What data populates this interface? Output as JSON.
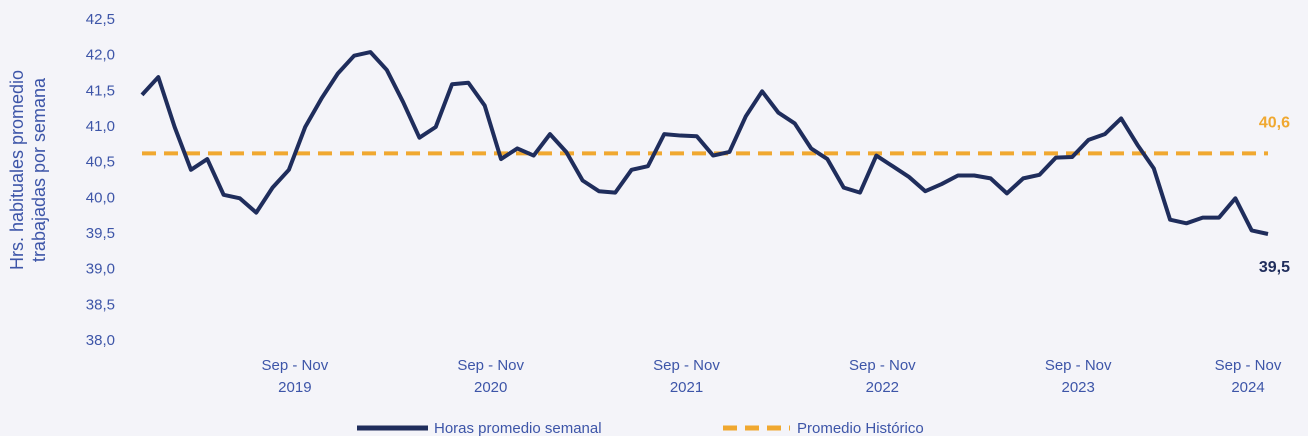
{
  "chart_data": {
    "type": "line",
    "ylabel": [
      "Hrs. habituales promedio",
      "trabajadas por semana"
    ],
    "categories": [
      null,
      null,
      null,
      null,
      null,
      null,
      null,
      null,
      null,
      "Sep - Nov\n2019",
      null,
      null,
      null,
      null,
      null,
      null,
      null,
      null,
      null,
      null,
      null,
      "Sep - Nov\n2020",
      null,
      null,
      null,
      null,
      null,
      null,
      null,
      null,
      null,
      null,
      null,
      "Sep - Nov\n2021",
      null,
      null,
      null,
      null,
      null,
      null,
      null,
      null,
      null,
      null,
      null,
      "Sep - Nov\n2022",
      null,
      null,
      null,
      null,
      null,
      null,
      null,
      null,
      null,
      null,
      null,
      "Sep - Nov\n2023",
      null,
      null,
      null,
      null,
      null,
      null,
      null,
      null,
      null,
      null,
      null,
      "Sep - Nov\n2024"
    ],
    "series": [
      {
        "name": "Horas promedio semanal",
        "color": "#1f2d5c",
        "values": [
          41.45,
          41.7,
          41.0,
          40.4,
          40.55,
          40.05,
          40.0,
          39.8,
          40.15,
          40.4,
          41.0,
          41.4,
          41.75,
          42.0,
          42.05,
          41.8,
          41.35,
          40.85,
          41.0,
          41.6,
          41.62,
          41.3,
          40.55,
          40.7,
          40.6,
          40.9,
          40.65,
          40.25,
          40.1,
          40.08,
          40.4,
          40.45,
          40.9,
          40.88,
          40.87,
          40.6,
          40.65,
          41.15,
          41.5,
          41.2,
          41.05,
          40.7,
          40.55,
          40.15,
          40.08,
          40.6,
          40.45,
          40.3,
          40.1,
          40.2,
          40.32,
          40.32,
          40.28,
          40.07,
          40.28,
          40.33,
          40.57,
          40.58,
          40.82,
          40.9,
          41.12,
          40.75,
          40.42,
          39.7,
          39.65,
          39.73,
          39.73,
          40.0,
          39.55,
          39.5
        ],
        "value_labels": [
          null,
          null,
          null,
          null,
          null,
          null,
          null,
          null,
          null,
          null,
          null,
          null,
          null,
          null,
          null,
          null,
          null,
          null,
          null,
          null,
          null,
          null,
          null,
          null,
          null,
          null,
          null,
          null,
          null,
          null,
          null,
          null,
          null,
          null,
          null,
          null,
          null,
          null,
          null,
          null,
          null,
          null,
          null,
          null,
          null,
          null,
          null,
          null,
          null,
          null,
          null,
          null,
          null,
          null,
          null,
          null,
          null,
          null,
          null,
          null,
          null,
          null,
          null,
          null,
          null,
          null,
          null,
          null,
          null,
          "39,5"
        ]
      }
    ],
    "reference": {
      "name": "Promedio Histórico",
      "color": "#f0a830",
      "value": 40.63,
      "value_label": "40,6",
      "dashed": true
    },
    "ylim": [
      38.0,
      42.5
    ],
    "yticks": [
      {
        "value": 38.0,
        "label": "38,0"
      },
      {
        "value": 38.5,
        "label": "38,5"
      },
      {
        "value": 39.0,
        "label": "39,0"
      },
      {
        "value": 39.5,
        "label": "39,5"
      },
      {
        "value": 40.0,
        "label": "40,0"
      },
      {
        "value": 40.5,
        "label": "40,5"
      },
      {
        "value": 41.0,
        "label": "41,0"
      },
      {
        "value": 41.5,
        "label": "41,5"
      },
      {
        "value": 42.0,
        "label": "42,0"
      },
      {
        "value": 42.5,
        "label": "42,5"
      }
    ],
    "grid": false,
    "legend": "bottom"
  }
}
